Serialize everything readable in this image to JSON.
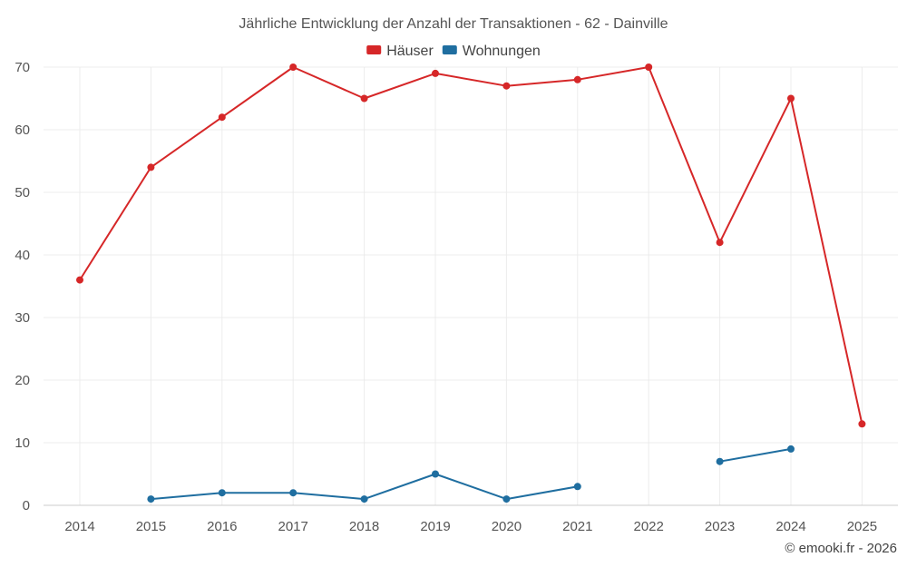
{
  "chart_data": {
    "type": "line",
    "title": "Jährliche Entwicklung der Anzahl der Transaktionen - 62 - Dainville",
    "x": [
      "2014",
      "2015",
      "2016",
      "2017",
      "2018",
      "2019",
      "2020",
      "2021",
      "2022",
      "2023",
      "2024",
      "2025"
    ],
    "series": [
      {
        "name": "Häuser",
        "color": "#d62728",
        "values": [
          36,
          54,
          62,
          70,
          65,
          69,
          67,
          68,
          70,
          42,
          65,
          13
        ]
      },
      {
        "name": "Wohnungen",
        "color": "#1f6ea0",
        "values": [
          null,
          1,
          2,
          2,
          1,
          5,
          1,
          3,
          null,
          7,
          9,
          null
        ]
      }
    ],
    "ylim": [
      0,
      70
    ],
    "yticks": [
      0,
      10,
      20,
      30,
      40,
      50,
      60,
      70
    ],
    "grid": true,
    "legend_position": "top-center",
    "xlabel": "",
    "ylabel": ""
  },
  "credit": "© emooki.fr - 2026"
}
